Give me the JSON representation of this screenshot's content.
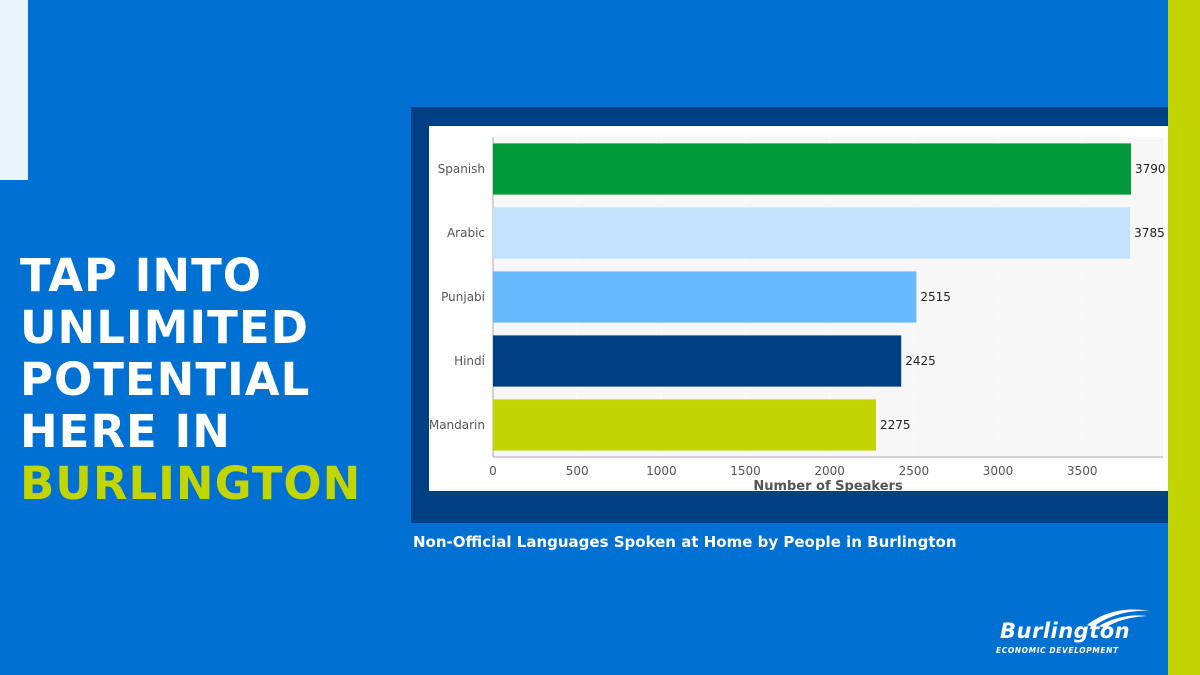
{
  "headline": {
    "lines": [
      "TAP INTO",
      "UNLIMITED",
      "POTENTIAL",
      "HERE IN"
    ],
    "accent_line": "BURLINGTON"
  },
  "caption": "Non-Official Languages Spoken at Home by People in Burlington",
  "logo": {
    "name": "Burlington",
    "tagline": "ECONOMIC DEVELOPMENT",
    "icon": "swoosh-icon"
  },
  "colors": {
    "background": "#0070D2",
    "accent": "#C2D500",
    "frame": "#003F84",
    "light": "#EAF4FD"
  },
  "chart_data": {
    "type": "bar",
    "orientation": "horizontal",
    "categories": [
      "Spanish",
      "Arabic",
      "Punjabi",
      "Hindi",
      "Mandarin"
    ],
    "values": [
      3790,
      3785,
      2515,
      2425,
      2275
    ],
    "bar_colors": [
      "#00993A",
      "#C3E2FB",
      "#66B9FB",
      "#003F84",
      "#C2D500"
    ],
    "data_labels": [
      "3790",
      "3785",
      "2515",
      "2425",
      "2275"
    ],
    "xlabel": "Number of Speakers",
    "ylabel": "",
    "xlim": [
      0,
      3980
    ],
    "xticks": [
      0,
      500,
      1000,
      1500,
      2000,
      2500,
      3000,
      3500
    ],
    "grid": true
  }
}
